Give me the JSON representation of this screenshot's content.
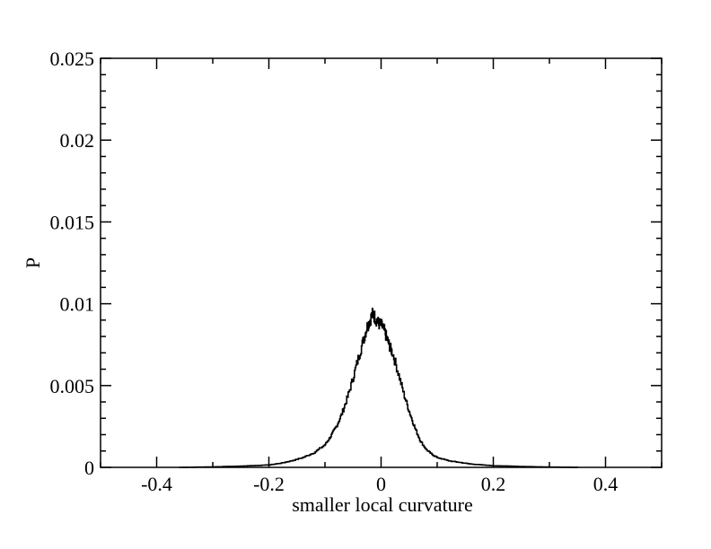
{
  "chart_data": {
    "type": "line",
    "title": "",
    "xlabel": "smaller local curvature",
    "ylabel": "P",
    "xlim": [
      -0.5,
      0.5
    ],
    "ylim": [
      0,
      0.025
    ],
    "x_ticks": [
      -0.4,
      -0.2,
      0,
      0.2,
      0.4
    ],
    "x_tick_labels": [
      "-0.4",
      "-0.2",
      "0",
      "0.2",
      "0.4"
    ],
    "y_ticks": [
      0,
      0.005,
      0.01,
      0.015,
      0.02,
      0.025
    ],
    "y_tick_labels": [
      "0",
      "0.005",
      "0.01",
      "0.015",
      "0.02",
      "0.025"
    ],
    "grid": false,
    "legend": "none",
    "line_color": "#000000",
    "series": [
      {
        "x": [
          -0.36,
          -0.3,
          -0.25,
          -0.2,
          -0.18,
          -0.16,
          -0.14,
          -0.12,
          -0.1,
          -0.09,
          -0.08,
          -0.07,
          -0.06,
          -0.05,
          -0.04,
          -0.03,
          -0.025,
          -0.02,
          -0.015,
          -0.01,
          -0.005,
          0,
          0.005,
          0.01,
          0.015,
          0.02,
          0.03,
          0.04,
          0.05,
          0.06,
          0.07,
          0.08,
          0.09,
          0.1,
          0.12,
          0.14,
          0.16,
          0.18,
          0.2,
          0.25,
          0.3,
          0.35
        ],
        "y": [
          0.0,
          3e-05,
          8e-05,
          0.00015,
          0.00025,
          0.0004,
          0.0006,
          0.0009,
          0.0014,
          0.0019,
          0.0025,
          0.0033,
          0.0043,
          0.0055,
          0.0068,
          0.008,
          0.0086,
          0.009,
          0.0094,
          0.0091,
          0.0088,
          0.0087,
          0.0084,
          0.0079,
          0.0074,
          0.007,
          0.0058,
          0.0045,
          0.0034,
          0.0024,
          0.0016,
          0.0011,
          0.0008,
          0.0006,
          0.0004,
          0.0003,
          0.0002,
          0.00015,
          0.0001,
          5e-05,
          2e-05,
          0.0
        ]
      }
    ]
  }
}
